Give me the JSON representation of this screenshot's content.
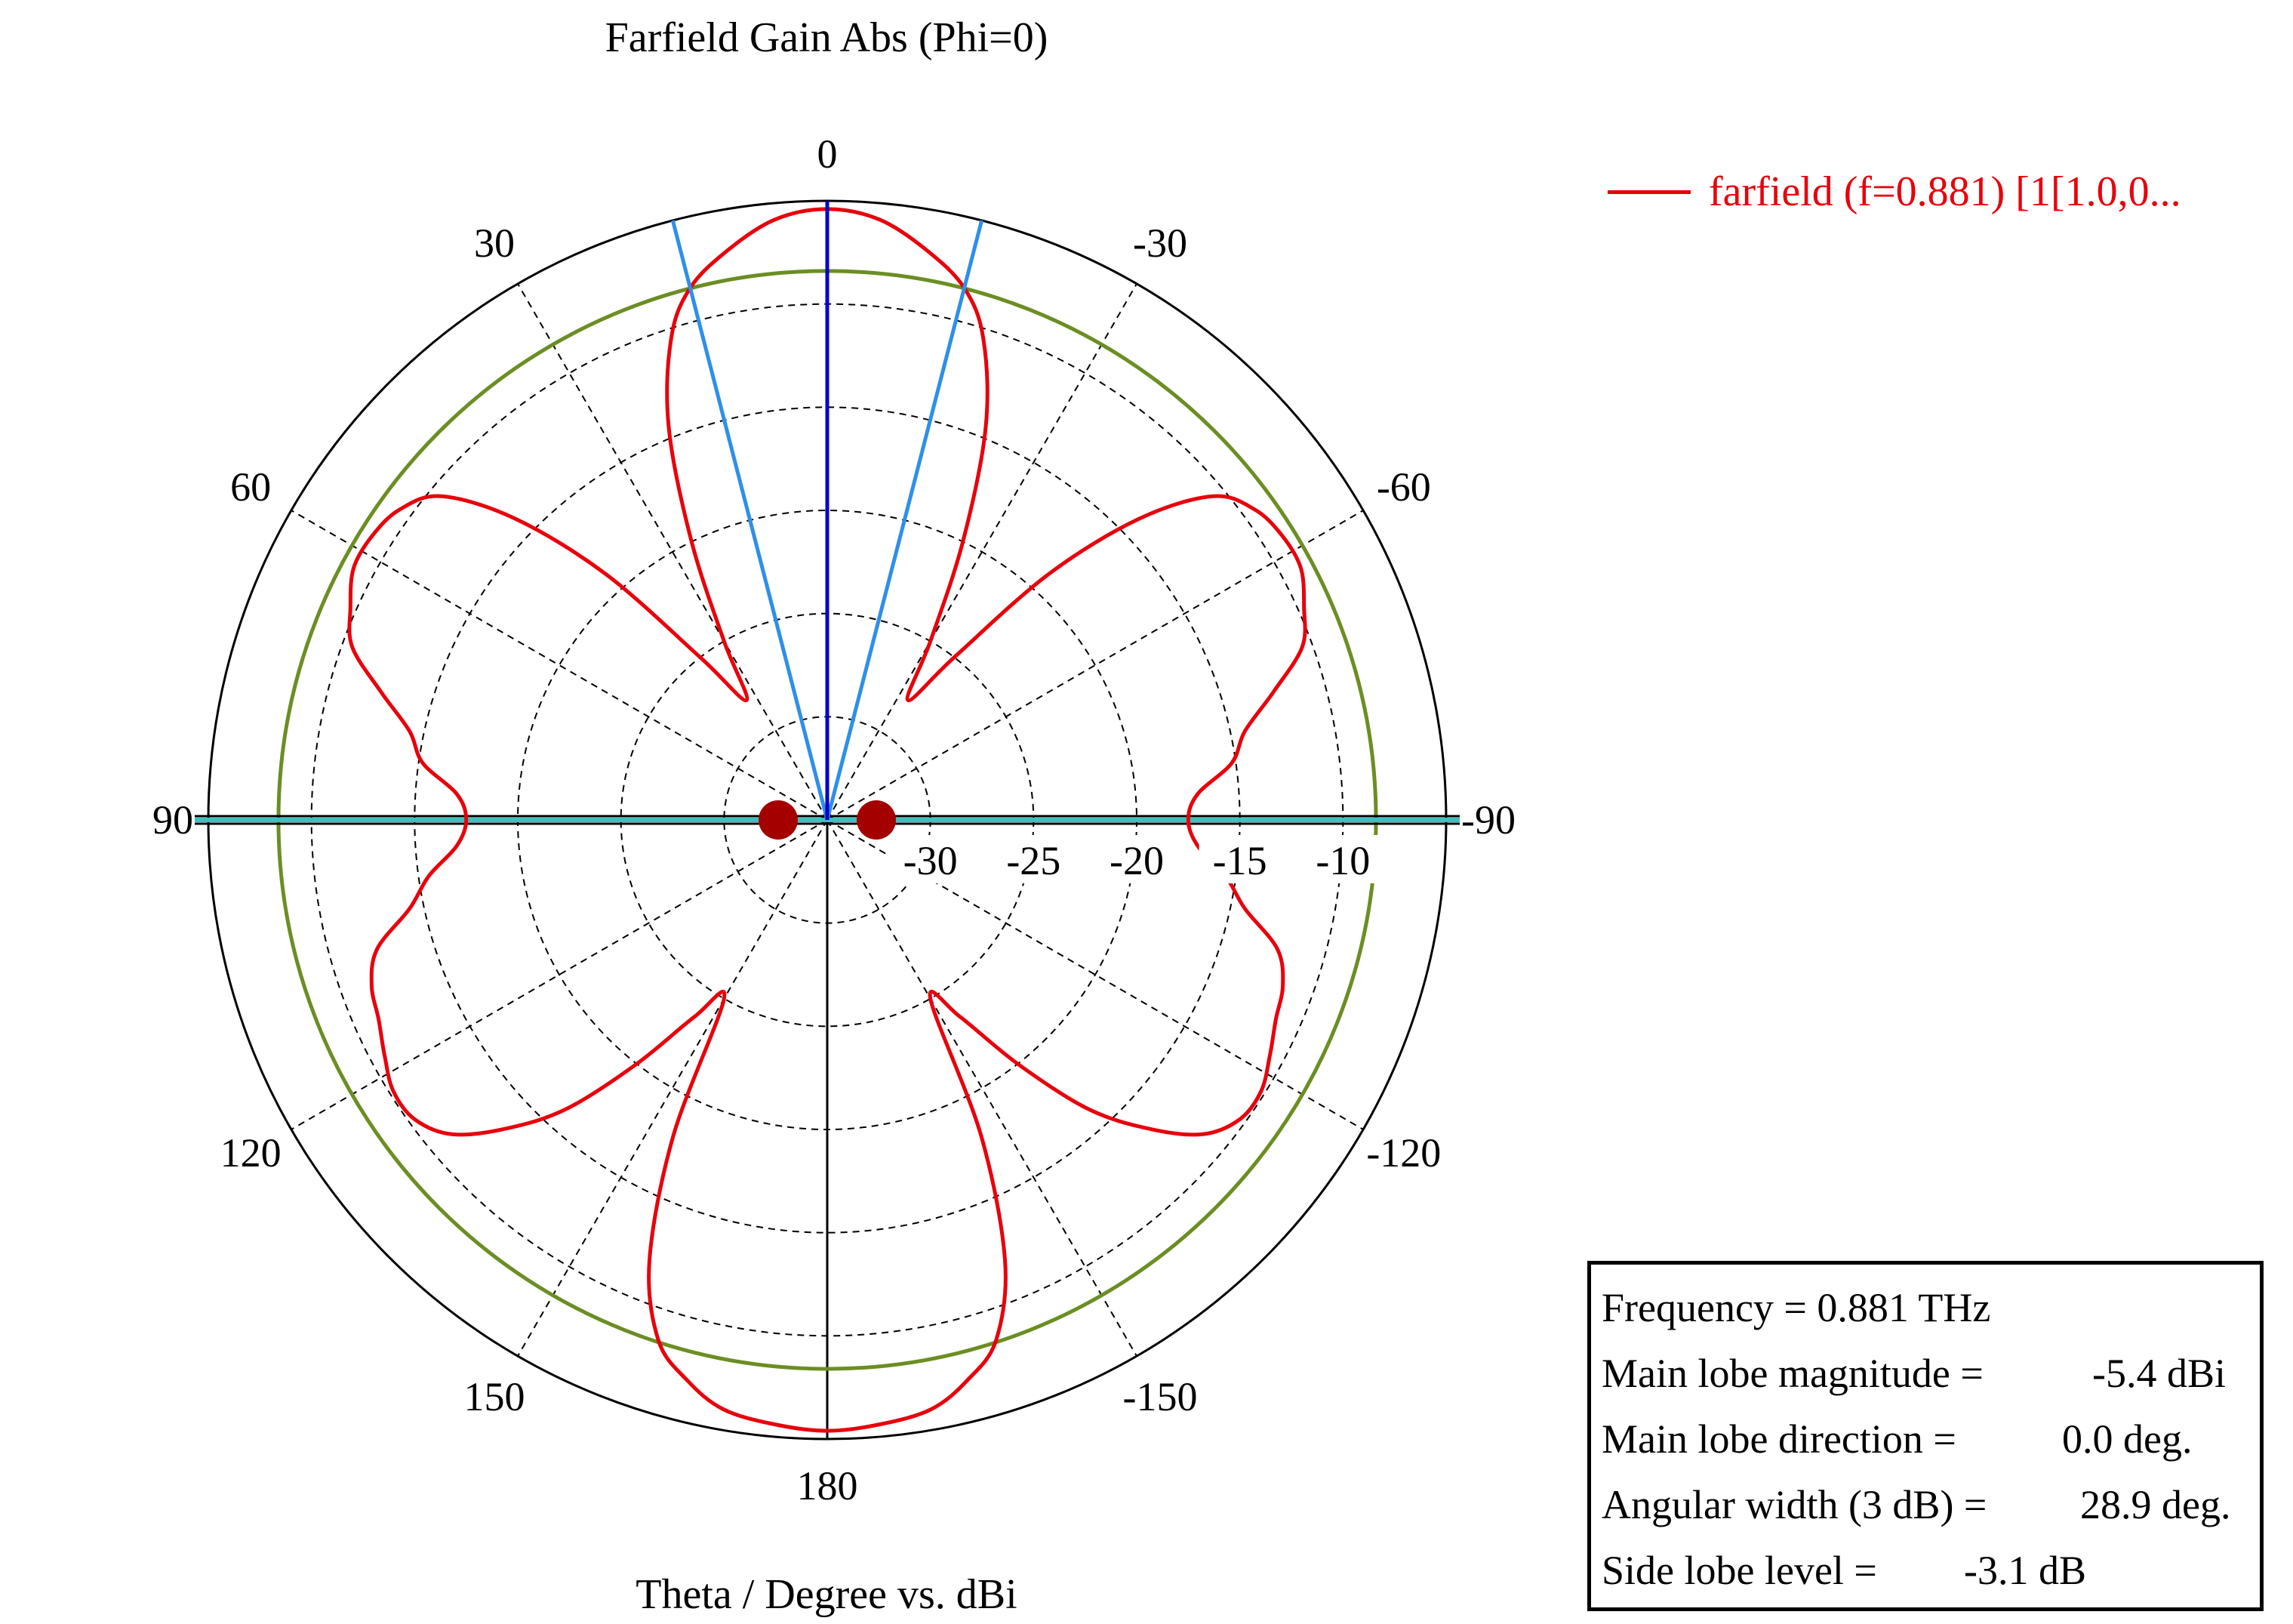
{
  "title": "Farfield Gain Abs (Phi=0)",
  "xlabel": "Theta / Degree vs. dBi",
  "legend": {
    "label": "farfield (f=0.881) [1[1.0,0..."
  },
  "colors": {
    "pattern": "#e8000b",
    "threshold_circle": "#6b8e23",
    "beam_edges": "#2f8fe8",
    "main_lobe_line": "#0000cc",
    "horizon_line": "#3fbfbf",
    "markers": "#a40000"
  },
  "info": {
    "rows": [
      {
        "label": "Frequency = 0.881 THz",
        "value": ""
      },
      {
        "label": "Main lobe magnitude =",
        "value": "-5.4 dBi"
      },
      {
        "label": "Main lobe direction =",
        "value": "0.0 deg."
      },
      {
        "label": "Angular width (3 dB) =",
        "value": "28.9 deg."
      },
      {
        "label": "Side lobe level =",
        "value": "-3.1 dB"
      }
    ]
  },
  "chart_data": {
    "type": "polar-line",
    "title": "Farfield Gain Abs (Phi=0)",
    "xlabel": "Theta / Degree vs. dBi",
    "angle_ticks": [
      {
        "deg": 0,
        "label": "0"
      },
      {
        "deg": 30,
        "label": "30"
      },
      {
        "deg": 60,
        "label": "60"
      },
      {
        "deg": 90,
        "label": "90"
      },
      {
        "deg": 120,
        "label": "120"
      },
      {
        "deg": 150,
        "label": "150"
      },
      {
        "deg": 180,
        "label": "180"
      },
      {
        "deg": -30,
        "label": "-30"
      },
      {
        "deg": -60,
        "label": "-60"
      },
      {
        "deg": -90,
        "label": "-90"
      },
      {
        "deg": -120,
        "label": "-120"
      },
      {
        "deg": -150,
        "label": "-150"
      }
    ],
    "radial_ticks": [
      -30,
      -25,
      -20,
      -15,
      -10
    ],
    "rlim": [
      -35,
      -5
    ],
    "grid": true,
    "legend_position": "top-right",
    "series": [
      {
        "name": "farfield (f=0.881) [1[1.0,0...",
        "theta_deg": [
          0,
          5,
          10,
          14.5,
          18,
          22,
          26,
          30,
          34,
          38,
          42,
          46,
          50,
          54,
          58,
          62,
          66,
          70,
          74,
          78,
          82,
          86,
          90,
          94,
          98,
          102,
          106,
          110,
          114,
          118,
          122,
          126,
          130,
          134,
          138,
          142,
          146,
          150,
          154,
          158,
          162,
          166,
          170,
          175,
          180
        ],
        "gain_dbi": [
          -5.4,
          -5.8,
          -7.0,
          -8.4,
          -10.5,
          -14.5,
          -20.0,
          -25.0,
          -28.0,
          -25.0,
          -19.0,
          -14.0,
          -10.6,
          -9.4,
          -9.0,
          -9.0,
          -9.7,
          -10.5,
          -12.5,
          -14.3,
          -15.2,
          -17.0,
          -17.5,
          -17.0,
          -15.5,
          -14.3,
          -12.3,
          -11.5,
          -11.2,
          -10.7,
          -10.2,
          -10.3,
          -11.3,
          -13.5,
          -16.2,
          -20.0,
          -23.5,
          -25.0,
          -18.0,
          -12.0,
          -8.5,
          -7.0,
          -6.0,
          -5.6,
          -5.4
        ]
      }
    ],
    "annotations": {
      "threshold_circle_dbi": -8.4,
      "beam_edges_deg": [
        14.45,
        -14.45
      ],
      "main_lobe_direction_deg": 0,
      "horizon_deg": 90
    }
  }
}
